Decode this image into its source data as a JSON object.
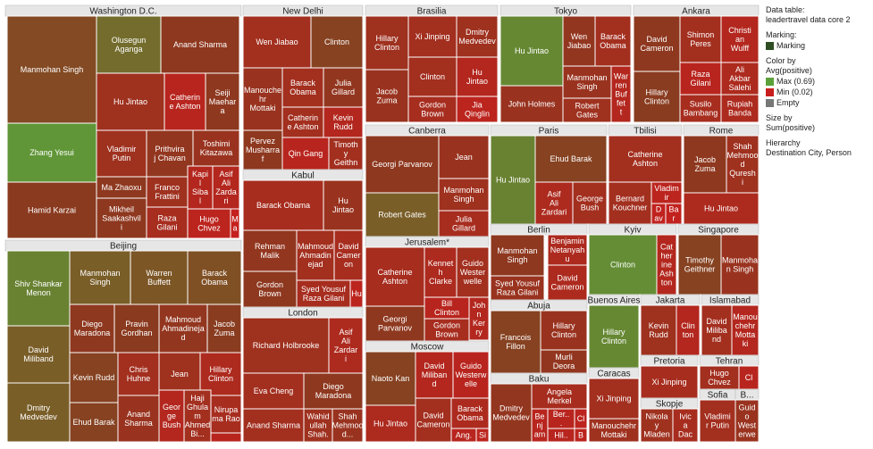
{
  "side_panel": {
    "table_label": "Data table:",
    "table_name": "leadertravel data core 2",
    "marking_title": "Marking:",
    "marking_item": "Marking",
    "color_title_1": "Color by",
    "color_title_2": "Avg(positive)",
    "legend": [
      {
        "label": "Max (0.69)",
        "color": "#5ba13a"
      },
      {
        "label": "Min (0.02)",
        "color": "#c81e1e"
      },
      {
        "label": "Empty",
        "color": "#777777"
      }
    ],
    "size_title_1": "Size by",
    "size_title_2": "Sum(positive)",
    "hierarchy_title": "Hierarchy",
    "hierarchy_value": "Destination City, Person"
  },
  "colors": {
    "marking": "#2e4d23",
    "max": "#5ba13a",
    "min": "#c81e1e",
    "mid": "#8a3a1f",
    "header": "#e6e6e6"
  },
  "chart_data": {
    "type": "treemap",
    "size_by": "Sum(positive)",
    "color_by": "Avg(positive)",
    "color_range": [
      0.02,
      0.69
    ],
    "hierarchy": [
      "Destination City",
      "Person"
    ],
    "groups": [
      {
        "name": "Washington D.C.",
        "cells": [
          {
            "label": "Manmohan Singh",
            "value": 0.38
          },
          {
            "label": "Olusegun Aganga",
            "value": 0.5
          },
          {
            "label": "Anand Sharma",
            "value": 0.3
          },
          {
            "label": "Zhang Yesui",
            "value": 0.65
          },
          {
            "label": "Hu Jintao",
            "value": 0.22
          },
          {
            "label": "Catherine Ashton",
            "value": 0.1
          },
          {
            "label": "Seiji Maehara",
            "value": 0.3
          },
          {
            "label": "Vladimir Putin",
            "value": 0.22
          },
          {
            "label": "Prithviraj Chavan",
            "value": 0.28
          },
          {
            "label": "Toshimi Kitazawa",
            "value": 0.25
          },
          {
            "label": "Hamid Karzai",
            "value": 0.32
          },
          {
            "label": "Ma Zhaoxu",
            "value": 0.3
          },
          {
            "label": "Franco Frattini",
            "value": 0.22
          },
          {
            "label": "Kapil Sibal",
            "value": 0.12
          },
          {
            "label": "Asif Ali Zardari",
            "value": 0.12
          },
          {
            "label": "Mikheil Saakashvili",
            "value": 0.3
          },
          {
            "label": "Raza Gilani",
            "value": 0.18
          },
          {
            "label": "Hugo Chvez",
            "value": 0.08
          },
          {
            "label": "Ma",
            "value": 0.04
          }
        ]
      },
      {
        "name": "New Delhi",
        "cells": [
          {
            "label": "Wen Jiabao",
            "value": 0.2
          },
          {
            "label": "Clinton",
            "value": 0.35
          },
          {
            "label": "Manouchehr Mottaki",
            "value": 0.25
          },
          {
            "label": "Barack Obama",
            "value": 0.2
          },
          {
            "label": "Julia Gillard",
            "value": 0.28
          },
          {
            "label": "Catherine Ashton",
            "value": 0.2
          },
          {
            "label": "Kevin Rudd",
            "value": 0.12
          },
          {
            "label": "Pervez Musharraf",
            "value": 0.3
          },
          {
            "label": "Qin Gang",
            "value": 0.1
          },
          {
            "label": "Timothy Geithner",
            "value": 0.2
          }
        ]
      },
      {
        "name": "Kabul",
        "cells": [
          {
            "label": "Barack Obama",
            "value": 0.18
          },
          {
            "label": "Hu Jintao",
            "value": 0.25
          },
          {
            "label": "Rehman Malik",
            "value": 0.28
          },
          {
            "label": "Mahmoud Ahmadinejad",
            "value": 0.2
          },
          {
            "label": "David Cameron",
            "value": 0.18
          },
          {
            "label": "Gordon Brown",
            "value": 0.3
          },
          {
            "label": "Syed Yousuf Raza Gilani",
            "value": 0.18
          },
          {
            "label": "Hu",
            "value": 0.08
          }
        ]
      },
      {
        "name": "London",
        "cells": [
          {
            "label": "Richard Holbrooke",
            "value": 0.22
          },
          {
            "label": "Asif Ali Zardari",
            "value": 0.15
          },
          {
            "label": "Eva Cheng",
            "value": 0.2
          },
          {
            "label": "Diego Maradona",
            "value": 0.3
          },
          {
            "label": "Anand Sharma",
            "value": 0.2
          },
          {
            "label": "Wahidullah Shah...",
            "value": 0.22
          },
          {
            "label": "Shah Mehmood...",
            "value": 0.25
          }
        ]
      },
      {
        "name": "Beijing",
        "cells": [
          {
            "label": "Shiv Shankar Menon",
            "value": 0.58
          },
          {
            "label": "Manmohan Singh",
            "value": 0.45
          },
          {
            "label": "Warren Buffett",
            "value": 0.42
          },
          {
            "label": "Barack Obama",
            "value": 0.4
          },
          {
            "label": "David Miliband",
            "value": 0.45
          },
          {
            "label": "Diego Maradona",
            "value": 0.3
          },
          {
            "label": "Pravin Gordhan",
            "value": 0.32
          },
          {
            "label": "Mahmoud Ahmadinejad",
            "value": 0.28
          },
          {
            "label": "Jacob Zuma",
            "value": 0.33
          },
          {
            "label": "Kevin Rudd",
            "value": 0.35
          },
          {
            "label": "Chris Huhne",
            "value": 0.2
          },
          {
            "label": "Jean",
            "value": 0.22
          },
          {
            "label": "Hillary Clinton",
            "value": 0.15
          },
          {
            "label": "Dmitry Medvedev",
            "value": 0.45
          },
          {
            "label": "Ehud Barak",
            "value": 0.35
          },
          {
            "label": "Anand Sharma",
            "value": 0.25
          },
          {
            "label": "George Bush",
            "value": 0.12
          },
          {
            "label": "Haji Ghulam Ahmed Bi...",
            "value": 0.2
          },
          {
            "label": "Nirupama Rao",
            "value": 0.18
          },
          {
            "label": "",
            "value": 0.1
          }
        ]
      },
      {
        "name": "Brasilia",
        "cells": [
          {
            "label": "Hillary Clinton",
            "value": 0.22
          },
          {
            "label": "Xi Jinping",
            "value": 0.2
          },
          {
            "label": "Dmitry Medvedev",
            "value": 0.22
          },
          {
            "label": "Clinton",
            "value": 0.2
          },
          {
            "label": "Hu Jintao",
            "value": 0.12
          },
          {
            "label": "Jacob Zuma",
            "value": 0.25
          },
          {
            "label": "Gordon Brown",
            "value": 0.18
          },
          {
            "label": "Jia Qinglin",
            "value": 0.08
          }
        ]
      },
      {
        "name": "Tokyo",
        "cells": [
          {
            "label": "Hu Jintao",
            "value": 0.6
          },
          {
            "label": "Wen Jiabao",
            "value": 0.28
          },
          {
            "label": "Barack Obama",
            "value": 0.2
          },
          {
            "label": "Manmohan Singh",
            "value": 0.25
          },
          {
            "label": "Warren Buffett",
            "value": 0.12
          },
          {
            "label": "John Holmes",
            "value": 0.25
          },
          {
            "label": "Robert Gates",
            "value": 0.22
          }
        ]
      },
      {
        "name": "Ankara",
        "cells": [
          {
            "label": "David Cameron",
            "value": 0.3
          },
          {
            "label": "Shimon Peres",
            "value": 0.2
          },
          {
            "label": "Christian Wulff",
            "value": 0.12
          },
          {
            "label": "Raza Gilani",
            "value": 0.1
          },
          {
            "label": "Ali Akbar Salehi",
            "value": 0.15
          },
          {
            "label": "Hillary Clinton",
            "value": 0.33
          },
          {
            "label": "Susilo Bambang Yudhoy...",
            "value": 0.18
          },
          {
            "label": "Rupiah Banda",
            "value": 0.15
          }
        ]
      },
      {
        "name": "Canberra",
        "cells": [
          {
            "label": "Georgi Parvanov",
            "value": 0.3
          },
          {
            "label": "Jean",
            "value": 0.25
          },
          {
            "label": "Manmohan Singh",
            "value": 0.22
          },
          {
            "label": "Robert Gates",
            "value": 0.45
          },
          {
            "label": "Julia Gillard",
            "value": 0.18
          }
        ]
      },
      {
        "name": "Jerusalem*",
        "cells": [
          {
            "label": "Catherine Ashton",
            "value": 0.18
          },
          {
            "label": "Kenneth Clarke",
            "value": 0.15
          },
          {
            "label": "Guido Westerwelle",
            "value": 0.2
          },
          {
            "label": "Bill Clinton",
            "value": 0.1
          },
          {
            "label": "John Kerry",
            "value": 0.12
          },
          {
            "label": "Georgi Parvanov",
            "value": 0.3
          },
          {
            "label": "Gordon Brown",
            "value": 0.18
          }
        ]
      },
      {
        "name": "Moscow",
        "cells": [
          {
            "label": "Naoto Kan",
            "value": 0.35
          },
          {
            "label": "David Miliband",
            "value": 0.12
          },
          {
            "label": "Guido Westerwelle",
            "value": 0.1
          },
          {
            "label": "Hu Jintao",
            "value": 0.15
          },
          {
            "label": "David Cameron",
            "value": 0.2
          },
          {
            "label": "Barack Obama",
            "value": 0.15
          },
          {
            "label": "Ang...",
            "value": 0.1
          },
          {
            "label": "Sil",
            "value": 0.08
          }
        ]
      },
      {
        "name": "Paris",
        "cells": [
          {
            "label": "Hu Jintao",
            "value": 0.58
          },
          {
            "label": "Ehud Barak",
            "value": 0.35
          },
          {
            "label": "Asif Ali Zardari",
            "value": 0.15
          },
          {
            "label": "George Bush",
            "value": 0.2
          }
        ]
      },
      {
        "name": "Tbilisi",
        "cells": [
          {
            "label": "Catherine Ashton",
            "value": 0.2
          },
          {
            "label": "Bernard Kouchner",
            "value": 0.2
          },
          {
            "label": "Vladimir Putin",
            "value": 0.08
          },
          {
            "label": "D av",
            "value": 0.06
          },
          {
            "label": "Bar",
            "value": 0.05
          }
        ]
      },
      {
        "name": "Rome",
        "cells": [
          {
            "label": "Jacob Zuma",
            "value": 0.3
          },
          {
            "label": "Shah Mehmood Qureshi",
            "value": 0.22
          },
          {
            "label": "Hu Jintao",
            "value": 0.15
          }
        ]
      },
      {
        "name": "Berlin",
        "cells": [
          {
            "label": "Manmohan Singh",
            "value": 0.3
          },
          {
            "label": "Benjamin Netanyahu",
            "value": 0.15
          },
          {
            "label": "Syed Yousuf Raza Gilani",
            "value": 0.25
          },
          {
            "label": "David Cameron",
            "value": 0.15
          }
        ]
      },
      {
        "name": "Kyiv",
        "cells": [
          {
            "label": "Clinton",
            "value": 0.62
          },
          {
            "label": "Catherine Ashton",
            "value": 0.12
          }
        ]
      },
      {
        "name": "Singapore",
        "cells": [
          {
            "label": "Timothy Geithner",
            "value": 0.35
          },
          {
            "label": "Manmohan Singh",
            "value": 0.25
          }
        ]
      },
      {
        "name": "Abuja",
        "cells": [
          {
            "label": "Francois Fillon",
            "value": 0.35
          },
          {
            "label": "Hillary Clinton",
            "value": 0.25
          },
          {
            "label": "Murli Deora",
            "value": 0.28
          }
        ]
      },
      {
        "name": "Buenos Aires",
        "cells": [
          {
            "label": "Hillary Clinton",
            "value": 0.6
          }
        ]
      },
      {
        "name": "Jakarta",
        "cells": [
          {
            "label": "Kevin Rudd",
            "value": 0.22
          },
          {
            "label": "Clinton",
            "value": 0.12
          }
        ]
      },
      {
        "name": "Islamabad",
        "cells": [
          {
            "label": "David Miliband",
            "value": 0.2
          },
          {
            "label": "Manouchehr Mottaki",
            "value": 0.12
          }
        ]
      },
      {
        "name": "Baku",
        "cells": [
          {
            "label": "Dmitry Medvedev",
            "value": 0.28
          },
          {
            "label": "Angela Merkel",
            "value": 0.18
          },
          {
            "label": "Benjamin Netanyahu",
            "value": 0.1
          },
          {
            "label": "Ber...",
            "value": 0.1
          },
          {
            "label": "Cl",
            "value": 0.08
          },
          {
            "label": "Hil...",
            "value": 0.1
          },
          {
            "label": "B",
            "value": 0.08
          }
        ]
      },
      {
        "name": "Caracas",
        "cells": [
          {
            "label": "Xi Jinping",
            "value": 0.2
          },
          {
            "label": "Manouchehr Mottaki",
            "value": 0.22
          }
        ]
      },
      {
        "name": "Pretoria",
        "cells": [
          {
            "label": "Xi Jinping",
            "value": 0.18
          }
        ]
      },
      {
        "name": "Tehran",
        "cells": [
          {
            "label": "Hugo Chvez",
            "value": 0.2
          },
          {
            "label": "Cl",
            "value": 0.1
          }
        ]
      },
      {
        "name": "Skopje",
        "cells": [
          {
            "label": "Nikolay Mladenov",
            "value": 0.22
          },
          {
            "label": "Ivica Dac",
            "value": 0.18
          }
        ]
      },
      {
        "name": "Sofia",
        "cells": [
          {
            "label": "Vladimir Putin",
            "value": 0.2
          }
        ]
      },
      {
        "name": "B...",
        "cells": [
          {
            "label": "Guido Westerwelle",
            "value": 0.25
          }
        ]
      }
    ]
  }
}
